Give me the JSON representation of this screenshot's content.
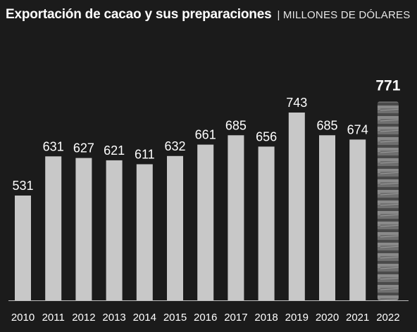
{
  "header": {
    "title": "Exportación de cacao y sus preparaciones",
    "subtitle": "| MILLONES DE DÓLARES"
  },
  "colors": {
    "background": "#1b1b1b",
    "bar": "#c8c8c8",
    "highlight_bar": "#6f6f6f",
    "text": "#ffffff"
  },
  "chart_data": {
    "type": "bar",
    "title": "Exportación de cacao y sus preparaciones",
    "subtitle": "| MILLONES DE DÓLARES",
    "categories": [
      "2010",
      "2011",
      "2012",
      "2013",
      "2014",
      "2015",
      "2016",
      "2017",
      "2018",
      "2019",
      "2020",
      "2021",
      "2022"
    ],
    "values": [
      531,
      631,
      627,
      621,
      611,
      632,
      661,
      685,
      656,
      743,
      685,
      674,
      771
    ],
    "highlight_index": 12,
    "highlight_style": "stacked-cacao-texture",
    "data_labels": true,
    "grid": false,
    "legend": "none"
  }
}
